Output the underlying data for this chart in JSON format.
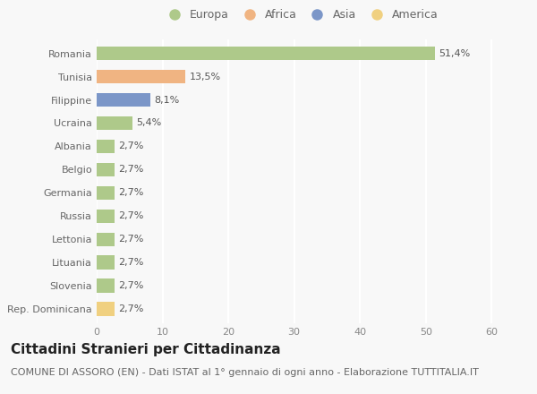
{
  "countries": [
    "Romania",
    "Tunisia",
    "Filippine",
    "Ucraina",
    "Albania",
    "Belgio",
    "Germania",
    "Russia",
    "Lettonia",
    "Lituania",
    "Slovenia",
    "Rep. Dominicana"
  ],
  "values": [
    51.4,
    13.5,
    8.1,
    5.4,
    2.7,
    2.7,
    2.7,
    2.7,
    2.7,
    2.7,
    2.7,
    2.7
  ],
  "labels": [
    "51,4%",
    "13,5%",
    "8,1%",
    "5,4%",
    "2,7%",
    "2,7%",
    "2,7%",
    "2,7%",
    "2,7%",
    "2,7%",
    "2,7%",
    "2,7%"
  ],
  "colors": [
    "#aec98a",
    "#f0b482",
    "#7b96c8",
    "#aec98a",
    "#aec98a",
    "#aec98a",
    "#aec98a",
    "#aec98a",
    "#aec98a",
    "#aec98a",
    "#aec98a",
    "#f0d080"
  ],
  "legend_labels": [
    "Europa",
    "Africa",
    "Asia",
    "America"
  ],
  "legend_colors": [
    "#aec98a",
    "#f0b482",
    "#7b96c8",
    "#f0d080"
  ],
  "title": "Cittadini Stranieri per Cittadinanza",
  "subtitle": "COMUNE DI ASSORO (EN) - Dati ISTAT al 1° gennaio di ogni anno - Elaborazione TUTTITALIA.IT",
  "xlabel_ticks": [
    0,
    10,
    20,
    30,
    40,
    50,
    60
  ],
  "xlim": [
    0,
    62
  ],
  "background_color": "#f8f8f8",
  "grid_color": "#ffffff",
  "bar_height": 0.6,
  "title_fontsize": 11,
  "subtitle_fontsize": 8,
  "label_fontsize": 8,
  "tick_fontsize": 8,
  "legend_fontsize": 9
}
